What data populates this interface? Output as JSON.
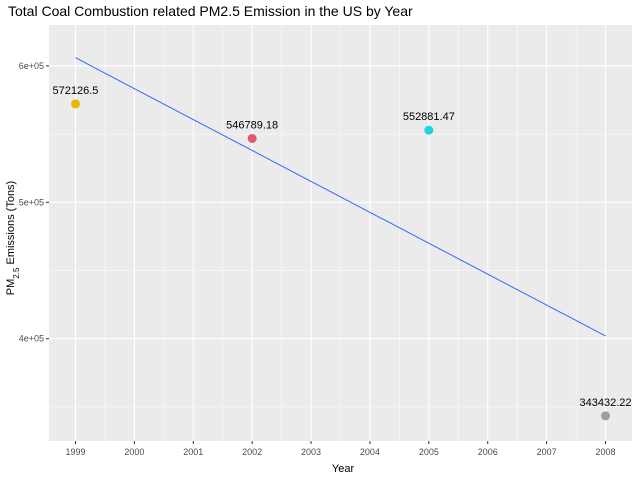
{
  "chart_data": {
    "type": "scatter",
    "title": "Total Coal Combustion related PM2.5 Emission in the US by Year",
    "xlabel": "Year",
    "ylabel": {
      "base": "PM",
      "subscript": "2.5",
      "rest": " Emissions (Tons)"
    },
    "x_ticks": [
      "1999",
      "2000",
      "2001",
      "2002",
      "2003",
      "2004",
      "2005",
      "2006",
      "2007",
      "2008"
    ],
    "y_ticks": [
      {
        "value": 400000,
        "label": "4e+05"
      },
      {
        "value": 500000,
        "label": "5e+05"
      },
      {
        "value": 600000,
        "label": "6e+05"
      }
    ],
    "xlim": [
      1998.55,
      2008.45
    ],
    "ylim": [
      325000,
      630000
    ],
    "points": [
      {
        "x": 1999,
        "y": 572126.5,
        "label": "572126.5",
        "color": "#e6b800"
      },
      {
        "x": 2002,
        "y": 546789.18,
        "label": "546789.18",
        "color": "#e05a6d"
      },
      {
        "x": 2005,
        "y": 552881.47,
        "label": "552881.47",
        "color": "#22d3e0"
      },
      {
        "x": 2008,
        "y": 343432.22,
        "label": "343432.22",
        "color": "#9e9e9e"
      }
    ],
    "trend_line": {
      "x": [
        1999,
        2008
      ],
      "y": [
        606000,
        402000
      ],
      "color": "#3366ff"
    },
    "grid": true,
    "legend": "none",
    "panel_color": "#ebebeb",
    "grid_color": "#ffffff"
  }
}
